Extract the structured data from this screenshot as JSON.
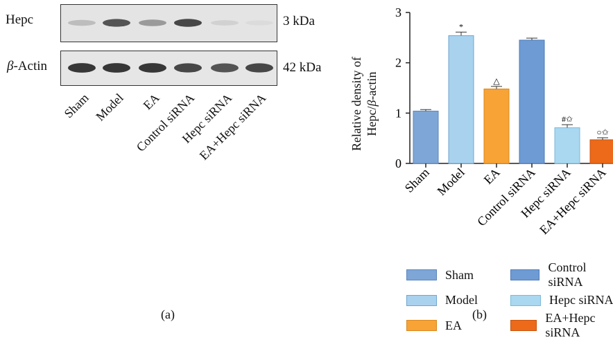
{
  "panel_a": {
    "label": "(a)",
    "blots": [
      {
        "protein_html": "Hepc",
        "size": "3 kDa",
        "band_intensity": [
          0.35,
          0.85,
          0.55,
          0.9,
          0.2,
          0.1
        ]
      },
      {
        "protein_prefix": "β",
        "protein_suffix": "-Actin",
        "size": "42 kDa",
        "band_intensity": [
          0.95,
          0.95,
          0.95,
          0.9,
          0.85,
          0.9
        ]
      }
    ],
    "lanes": [
      "Sham",
      "Model",
      "EA",
      "Control siRNA",
      "Hepc siRNA",
      "EA+Hepc siRNA"
    ]
  },
  "panel_b": {
    "label": "(b)",
    "ylabel_line1": "Relative density of",
    "ylabel_line2_prefix": "Hepc/",
    "ylabel_line2_italic": "β",
    "ylabel_line2_suffix": "-actin"
  },
  "chart_data": {
    "type": "bar",
    "categories": [
      "Sham",
      "Model",
      "EA",
      "Control siRNA",
      "Hepc siRNA",
      "EA+Hepc siRNA"
    ],
    "values": [
      1.04,
      2.54,
      1.48,
      2.45,
      0.71,
      0.47
    ],
    "errors": [
      0.03,
      0.07,
      0.05,
      0.04,
      0.06,
      0.04
    ],
    "annotations": [
      "",
      "*",
      "△",
      "",
      "#✩",
      "○✩"
    ],
    "colors": [
      "#7ea6d6",
      "#a9d2ef",
      "#f7a336",
      "#6e9bd3",
      "#a9d8f0",
      "#ec6a1a"
    ],
    "edge_colors": [
      "#5b86bd",
      "#6ea6d0",
      "#d9871f",
      "#4f7cb7",
      "#7bbad9",
      "#c9530d"
    ],
    "ylim": [
      0,
      3
    ],
    "yticks": [
      0,
      1,
      2,
      3
    ],
    "legend": {
      "placement": "bottom",
      "entries": [
        "Sham",
        "Model",
        "EA",
        "Control siRNA",
        "Hepc siRNA",
        "EA+Hepc siRNA"
      ]
    },
    "grid": false
  }
}
